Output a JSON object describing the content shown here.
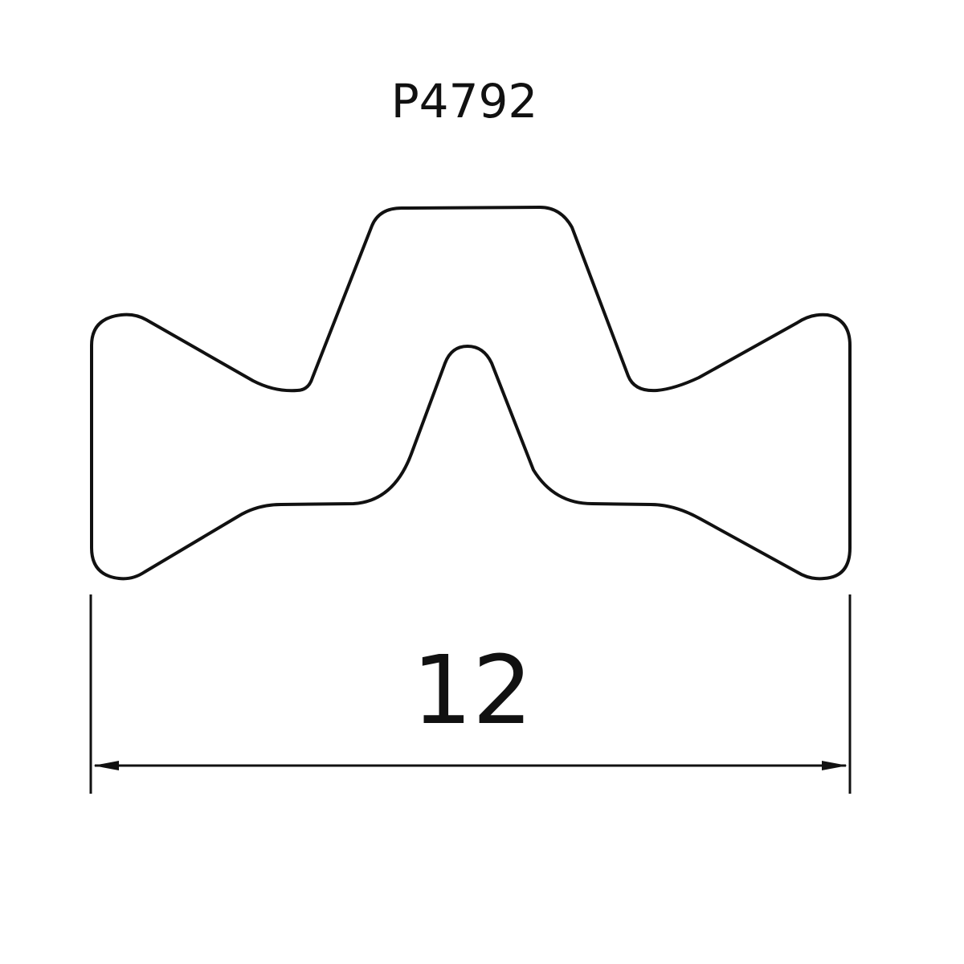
{
  "drawing": {
    "part_code": "P4792",
    "dimension": {
      "value": "12"
    },
    "colors": {
      "line": "#111111",
      "background": "#ffffff"
    }
  }
}
